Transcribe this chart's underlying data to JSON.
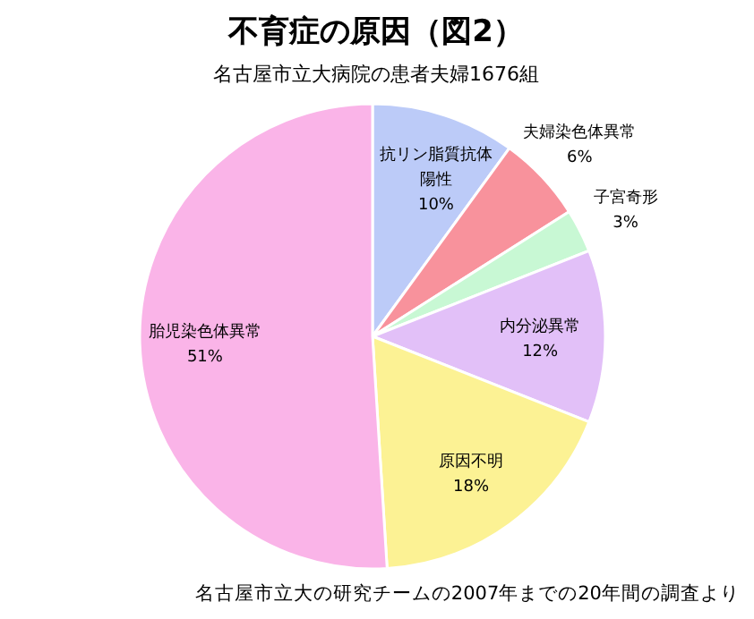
{
  "chart_data": {
    "type": "pie",
    "title": "不育症の原因（図2）",
    "subtitle": "名古屋市立大病院の患者夫婦1676組",
    "categories": [
      "抗リン脂質抗体陽性",
      "夫婦染色体異常",
      "子宮奇形",
      "内分泌異常",
      "原因不明",
      "胎児染色体異常"
    ],
    "values": [
      10,
      6,
      3,
      12,
      18,
      51
    ],
    "value_labels": [
      "10%",
      "6%",
      "3%",
      "12%",
      "18%",
      "51%"
    ],
    "colors": [
      "#bccbf8",
      "#f8929c",
      "#c8f8d4",
      "#e2c0f8",
      "#fcf294",
      "#fab4e8"
    ],
    "annotations": [
      "名古屋市立大の研究チームの2007年までの20年間の調査より"
    ]
  }
}
